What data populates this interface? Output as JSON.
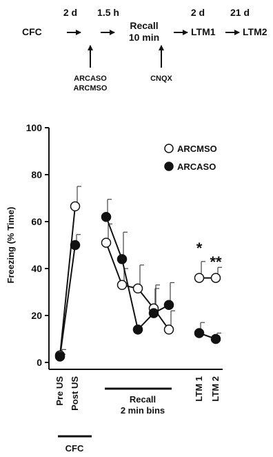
{
  "timeline": {
    "cfc": "CFC",
    "interval_1": "2 d",
    "interval_2": "1.5 h",
    "recall_line1": "Recall",
    "recall_line2": "10 min",
    "interval_3": "2 d",
    "ltm1": "LTM1",
    "interval_4": "21 d",
    "ltm2": "LTM2",
    "injection_1_line1": "ARCASO",
    "injection_1_line2": "ARCMSO",
    "injection_2": "CNQX"
  },
  "chart_data": {
    "type": "line",
    "ylabel": "Freezing (% Time)",
    "ylim": [
      0,
      100
    ],
    "yticks": [
      0,
      20,
      40,
      60,
      80,
      100
    ],
    "x_labels": [
      "Pre US",
      "Post US",
      "LTM 1",
      "LTM 2"
    ],
    "group_labels": {
      "recall_line1": "Recall",
      "recall_line2": "2 min bins",
      "cfc": "CFC"
    },
    "legend_position": "top-right",
    "significance": [
      "*",
      "**"
    ],
    "series": [
      {
        "name": "ARCMSO",
        "marker": "open-circle",
        "segments": [
          {
            "phase": "CFC",
            "values": [
              3,
              66.5
            ],
            "errors": [
              2.5,
              8.5
            ]
          },
          {
            "phase": "Recall",
            "values": [
              51,
              33,
              31.5,
              23,
              14
            ],
            "errors": [
              8,
              7,
              10,
              10,
              8
            ]
          },
          {
            "phase": "LTM",
            "values": [
              36,
              36
            ],
            "errors": [
              7,
              4.5
            ]
          }
        ]
      },
      {
        "name": "ARCASO",
        "marker": "filled-circle",
        "segments": [
          {
            "phase": "CFC",
            "values": [
              2.5,
              50
            ],
            "errors": [
              1,
              4.5
            ]
          },
          {
            "phase": "Recall",
            "values": [
              62,
              44,
              14,
              21,
              24.5
            ],
            "errors": [
              7.5,
              11.5,
              0,
              10.5,
              9.5
            ]
          },
          {
            "phase": "LTM",
            "values": [
              12.5,
              10
            ],
            "errors": [
              4.5,
              2.5
            ]
          }
        ]
      }
    ]
  }
}
